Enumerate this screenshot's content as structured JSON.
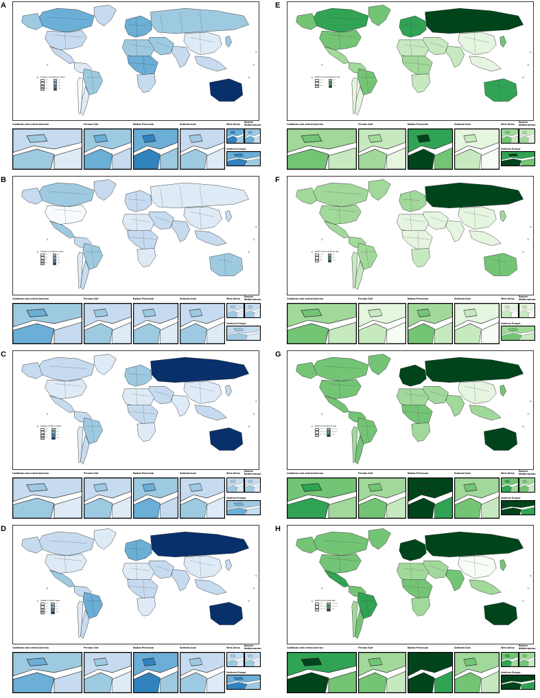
{
  "panels": [
    {
      "letter": "A",
      "palette": "blue",
      "legend_title": "Change in prevalence cases",
      "legend_labels": [
        "<0.0",
        "0.0-",
        "0.1-",
        "0.2-",
        "0.3-",
        "0.4-",
        "0.5-",
        ">0.6"
      ],
      "insets": [
        "Caribbean and central America",
        "Persian Gulf",
        "Balkan Peninsula",
        "Sotheast Asia",
        "West Africa",
        "Eastern Mediterranean",
        "Northern Europe"
      ],
      "levels": {
        "na": 3,
        "can": 4,
        "usa": 2,
        "mex": 2,
        "sam": 1,
        "bra": 3,
        "arg": 1,
        "chl": 0,
        "gre": 2,
        "eur": 4,
        "rus": 3,
        "chn": 1,
        "ind": 2,
        "mea": 3,
        "afn": 3,
        "afc": 4,
        "afs": 2,
        "aus": 6,
        "sea": 2,
        "jpn": 3
      }
    },
    {
      "letter": "B",
      "palette": "blue",
      "legend_title": "Change in incidence cases",
      "legend_labels": [
        "<0.0",
        "0.0-",
        "0.1-",
        "0.2-",
        "0.3-",
        "0.4-",
        "0.5-",
        ">0.6"
      ],
      "insets": [
        "Caribbean and central America",
        "Persian Gulf",
        "Balkan Peninsula",
        "Sotheast Asia",
        "West Africa",
        "Eastern Mediterranean",
        "Northern Europe"
      ],
      "levels": {
        "na": 2,
        "can": 3,
        "usa": 0,
        "mex": 3,
        "sam": 2,
        "bra": 3,
        "arg": 2,
        "chl": 1,
        "gre": 2,
        "eur": 2,
        "rus": 1,
        "chn": 1,
        "ind": 2,
        "mea": 2,
        "afn": 1,
        "afc": 2,
        "afs": 1,
        "aus": 3,
        "sea": 2,
        "jpn": 2
      }
    },
    {
      "letter": "C",
      "palette": "blue",
      "legend_title": "Change in DALYs cases",
      "legend_labels": [
        "<0.0",
        "0.0-",
        "0.1-",
        "0.2-",
        "0.3-",
        "0.4-",
        "0.5-",
        ">0.6"
      ],
      "insets": [
        "Caribbean and central America",
        "Persian Gulf",
        "Balkan Peninsula",
        "Sotheast Asia",
        "West Africa",
        "Eastern Mediterranean",
        "Northern Europe"
      ],
      "levels": {
        "na": 2,
        "can": 2,
        "usa": 1,
        "mex": 2,
        "sam": 2,
        "bra": 3,
        "arg": 2,
        "chl": 1,
        "gre": 1,
        "eur": 3,
        "rus": 6,
        "chn": 1,
        "ind": 1,
        "mea": 2,
        "afn": 1,
        "afc": 2,
        "afs": 1,
        "aus": 6,
        "sea": 2,
        "jpn": 2
      }
    },
    {
      "letter": "D",
      "palette": "blue",
      "legend_title": "Change in death cases",
      "legend_labels": [
        "<0.0",
        "0.0-",
        "0.1-",
        "0.2-",
        "0.3-",
        "0.4-",
        "0.5-",
        ">0.6"
      ],
      "insets": [
        "Caribbean and central America",
        "Persian Gulf",
        "Balkan Peninsula",
        "Sotheast Asia",
        "West Africa",
        "Eastern Mediterranean",
        "Northern Europe"
      ],
      "levels": {
        "na": 2,
        "can": 2,
        "usa": 1,
        "mex": 3,
        "sam": 2,
        "bra": 4,
        "arg": 2,
        "chl": 1,
        "gre": 1,
        "eur": 4,
        "rus": 6,
        "chn": 1,
        "ind": 2,
        "mea": 2,
        "afn": 1,
        "afc": 2,
        "afs": 1,
        "aus": 6,
        "sea": 2,
        "jpn": 2
      }
    },
    {
      "letter": "E",
      "palette": "green",
      "legend_title": "EAPC for the prevalence rate",
      "legend_labels": [
        "<-1.0",
        "-1.0-",
        "-0.5-",
        "0.0-",
        "0.5-",
        ">1.0"
      ],
      "insets": [
        "Caribbean and central America",
        "Persian Gulf",
        "Balkan Peninsula",
        "Sotheast Asia",
        "West Africa",
        "Eastern Mediterranean",
        "Northern Europe"
      ],
      "levels": {
        "na": 4,
        "can": 5,
        "usa": 4,
        "mex": 3,
        "sam": 3,
        "bra": 4,
        "arg": 1,
        "chl": 1,
        "gre": 4,
        "eur": 5,
        "rus": 6,
        "chn": 1,
        "ind": 2,
        "mea": 2,
        "afn": 2,
        "afc": 3,
        "afs": 2,
        "aus": 5,
        "sea": 1,
        "jpn": 4
      }
    },
    {
      "letter": "F",
      "palette": "green",
      "legend_title": "EAPC for the incidence rate",
      "legend_labels": [
        "<-1.0",
        "-1.0-",
        "-0.5-",
        "0.0-",
        "0.5-",
        ">1.0"
      ],
      "insets": [
        "Caribbean and central America",
        "Persian Gulf",
        "Balkan Peninsula",
        "Sotheast Asia",
        "West Africa",
        "Eastern Mediterranean",
        "Northern Europe"
      ],
      "levels": {
        "na": 3,
        "can": 3,
        "usa": 3,
        "mex": 3,
        "sam": 3,
        "bra": 3,
        "arg": 2,
        "chl": 2,
        "gre": 3,
        "eur": 3,
        "rus": 6,
        "chn": 1,
        "ind": 1,
        "mea": 1,
        "afn": 1,
        "afc": 1,
        "afs": 2,
        "aus": 4,
        "sea": 1,
        "jpn": 3
      }
    },
    {
      "letter": "G",
      "palette": "green",
      "legend_title": "EAPC for the DALYs rate",
      "legend_labels": [
        "<-2.5",
        "-2.5- -1.5",
        "-1.5- -1.0",
        "-1.0- -0.5",
        "-0.5- 0.0",
        ">0.0"
      ],
      "insets": [
        "Caribbean and central America",
        "Persian Gulf",
        "Balkan Peninsula",
        "Sotheast Asia",
        "West Africa",
        "Eastern Mediterranean",
        "Northern Europe"
      ],
      "levels": {
        "na": 4,
        "can": 4,
        "usa": 4,
        "mex": 4,
        "sam": 4,
        "bra": 4,
        "arg": 4,
        "chl": 3,
        "gre": 4,
        "eur": 6,
        "rus": 6,
        "chn": 1,
        "ind": 3,
        "mea": 3,
        "afn": 3,
        "afc": 4,
        "afs": 3,
        "aus": 6,
        "sea": 3,
        "jpn": 4
      }
    },
    {
      "letter": "H",
      "palette": "green",
      "legend_title": "EAPC for the death rate",
      "legend_labels": [
        "<-2.5",
        "-2.5- -1.5",
        "-1.5- -1.0",
        "-1.0- -0.5",
        "-0.5- 0.0",
        ">0.0"
      ],
      "insets": [
        "Caribbean and central America",
        "Persian Gulf",
        "Balkan Peninsula",
        "Sotheast Asia",
        "West Africa",
        "Eastern Mediterranean",
        "Northern Europe"
      ],
      "levels": {
        "na": 4,
        "can": 4,
        "usa": 4,
        "mex": 5,
        "sam": 4,
        "bra": 5,
        "arg": 4,
        "chl": 3,
        "gre": 4,
        "eur": 6,
        "rus": 6,
        "chn": 0,
        "ind": 4,
        "mea": 3,
        "afn": 3,
        "afc": 4,
        "afs": 3,
        "aus": 6,
        "sea": 3,
        "jpn": 4
      }
    }
  ],
  "colors": {
    "blue": [
      "#f7fbff",
      "#deebf7",
      "#c6dbef",
      "#9ecae1",
      "#6baed6",
      "#3182bd",
      "#08306b"
    ],
    "green": [
      "#f7fcf5",
      "#e5f5e0",
      "#c7e9c0",
      "#a1d99b",
      "#74c476",
      "#31a354",
      "#00441b"
    ]
  }
}
